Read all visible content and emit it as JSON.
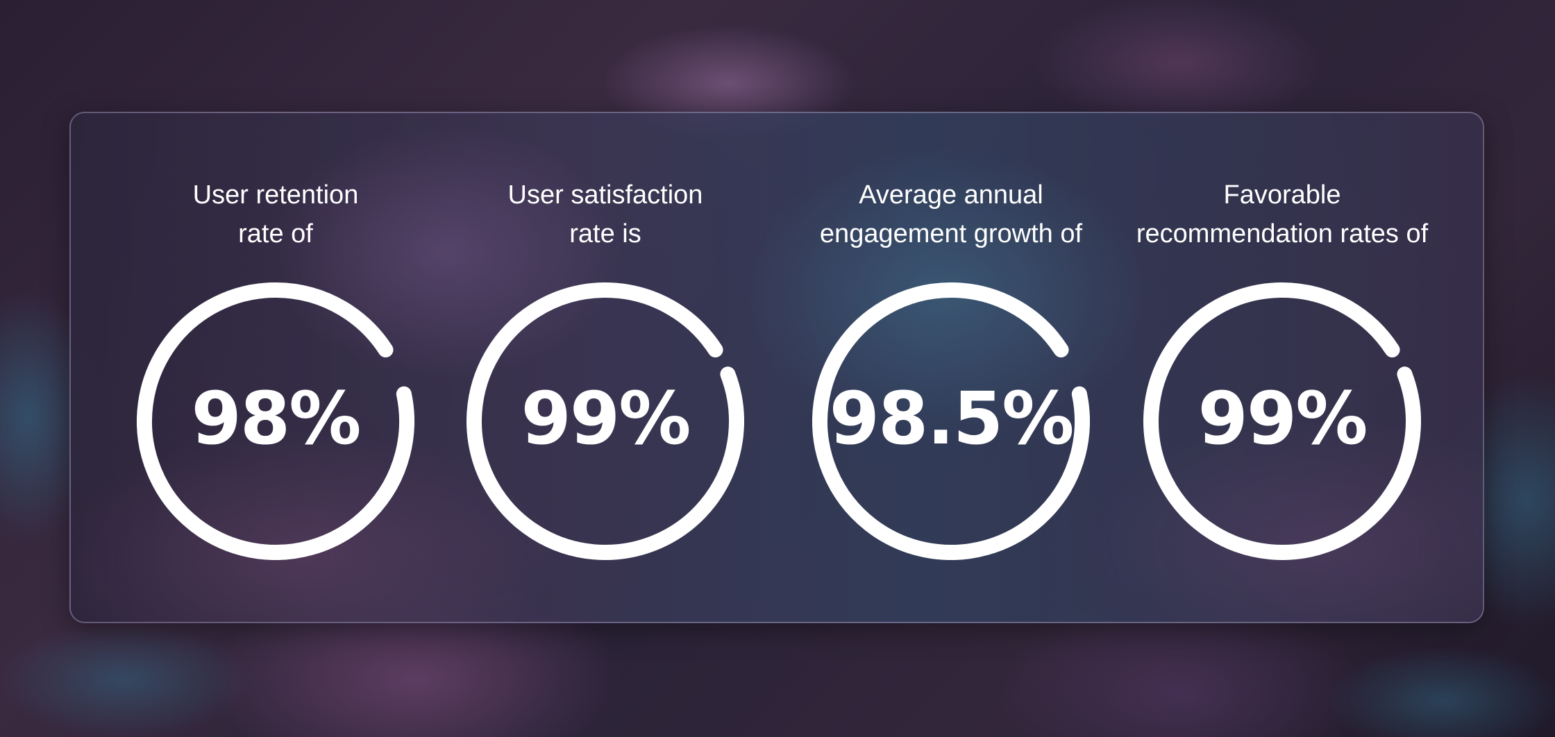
{
  "stats": [
    {
      "label": "User retention\nrate of",
      "value": "98%",
      "gap_start_deg": 57,
      "gap_end_deg": 78
    },
    {
      "label": "User satisfaction\nrate is",
      "value": "99%",
      "gap_start_deg": 57,
      "gap_end_deg": 69
    },
    {
      "label": "Average annual\nengagement growth of",
      "value": "98.5%",
      "gap_start_deg": 57,
      "gap_end_deg": 78
    },
    {
      "label": "Favorable\nrecommendation rates of",
      "value": "99%",
      "gap_start_deg": 57,
      "gap_end_deg": 69
    }
  ],
  "colors": {
    "ring": "#ffffff",
    "text": "#ffffff"
  }
}
